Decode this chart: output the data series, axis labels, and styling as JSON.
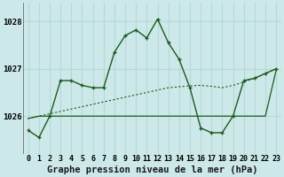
{
  "title": "Graphe pression niveau de la mer (hPa)",
  "background_color": "#cce8e8",
  "grid_color": "#aed4d4",
  "line_color_dark": "#1a5c1a",
  "x_labels": [
    "0",
    "1",
    "2",
    "3",
    "4",
    "5",
    "6",
    "7",
    "8",
    "9",
    "10",
    "11",
    "12",
    "13",
    "14",
    "15",
    "16",
    "17",
    "18",
    "19",
    "20",
    "21",
    "22",
    "23"
  ],
  "hours": [
    0,
    1,
    2,
    3,
    4,
    5,
    6,
    7,
    8,
    9,
    10,
    11,
    12,
    13,
    14,
    15,
    16,
    17,
    18,
    19,
    20,
    21,
    22,
    23
  ],
  "series_jagged": [
    1025.7,
    1025.55,
    1026.0,
    1026.75,
    1026.75,
    1026.65,
    1026.6,
    1026.6,
    1027.35,
    1027.7,
    1027.82,
    1027.65,
    1028.05,
    1027.55,
    1027.2,
    1026.6,
    1025.75,
    1025.65,
    1025.65,
    1026.0,
    1026.75,
    1026.8,
    1026.9,
    1027.0
  ],
  "series_smooth": [
    1025.95,
    1026.0,
    1026.05,
    1026.1,
    1026.15,
    1026.2,
    1026.25,
    1026.3,
    1026.35,
    1026.4,
    1026.45,
    1026.5,
    1026.55,
    1026.6,
    1026.62,
    1026.64,
    1026.65,
    1026.63,
    1026.6,
    1026.65,
    1026.72,
    1026.8,
    1026.9,
    1027.0
  ],
  "series_flat": [
    1025.95,
    1026.0,
    1026.0,
    1026.0,
    1026.0,
    1026.0,
    1026.0,
    1026.0,
    1026.0,
    1026.0,
    1026.0,
    1026.0,
    1026.0,
    1026.0,
    1026.0,
    1026.0,
    1026.0,
    1026.0,
    1026.0,
    1026.0,
    1026.0,
    1026.0,
    1026.0,
    1026.97
  ],
  "ylim": [
    1025.2,
    1028.4
  ],
  "yticks": [
    1026,
    1027,
    1028
  ],
  "title_fontsize": 7.5,
  "tick_fontsize": 6.0
}
